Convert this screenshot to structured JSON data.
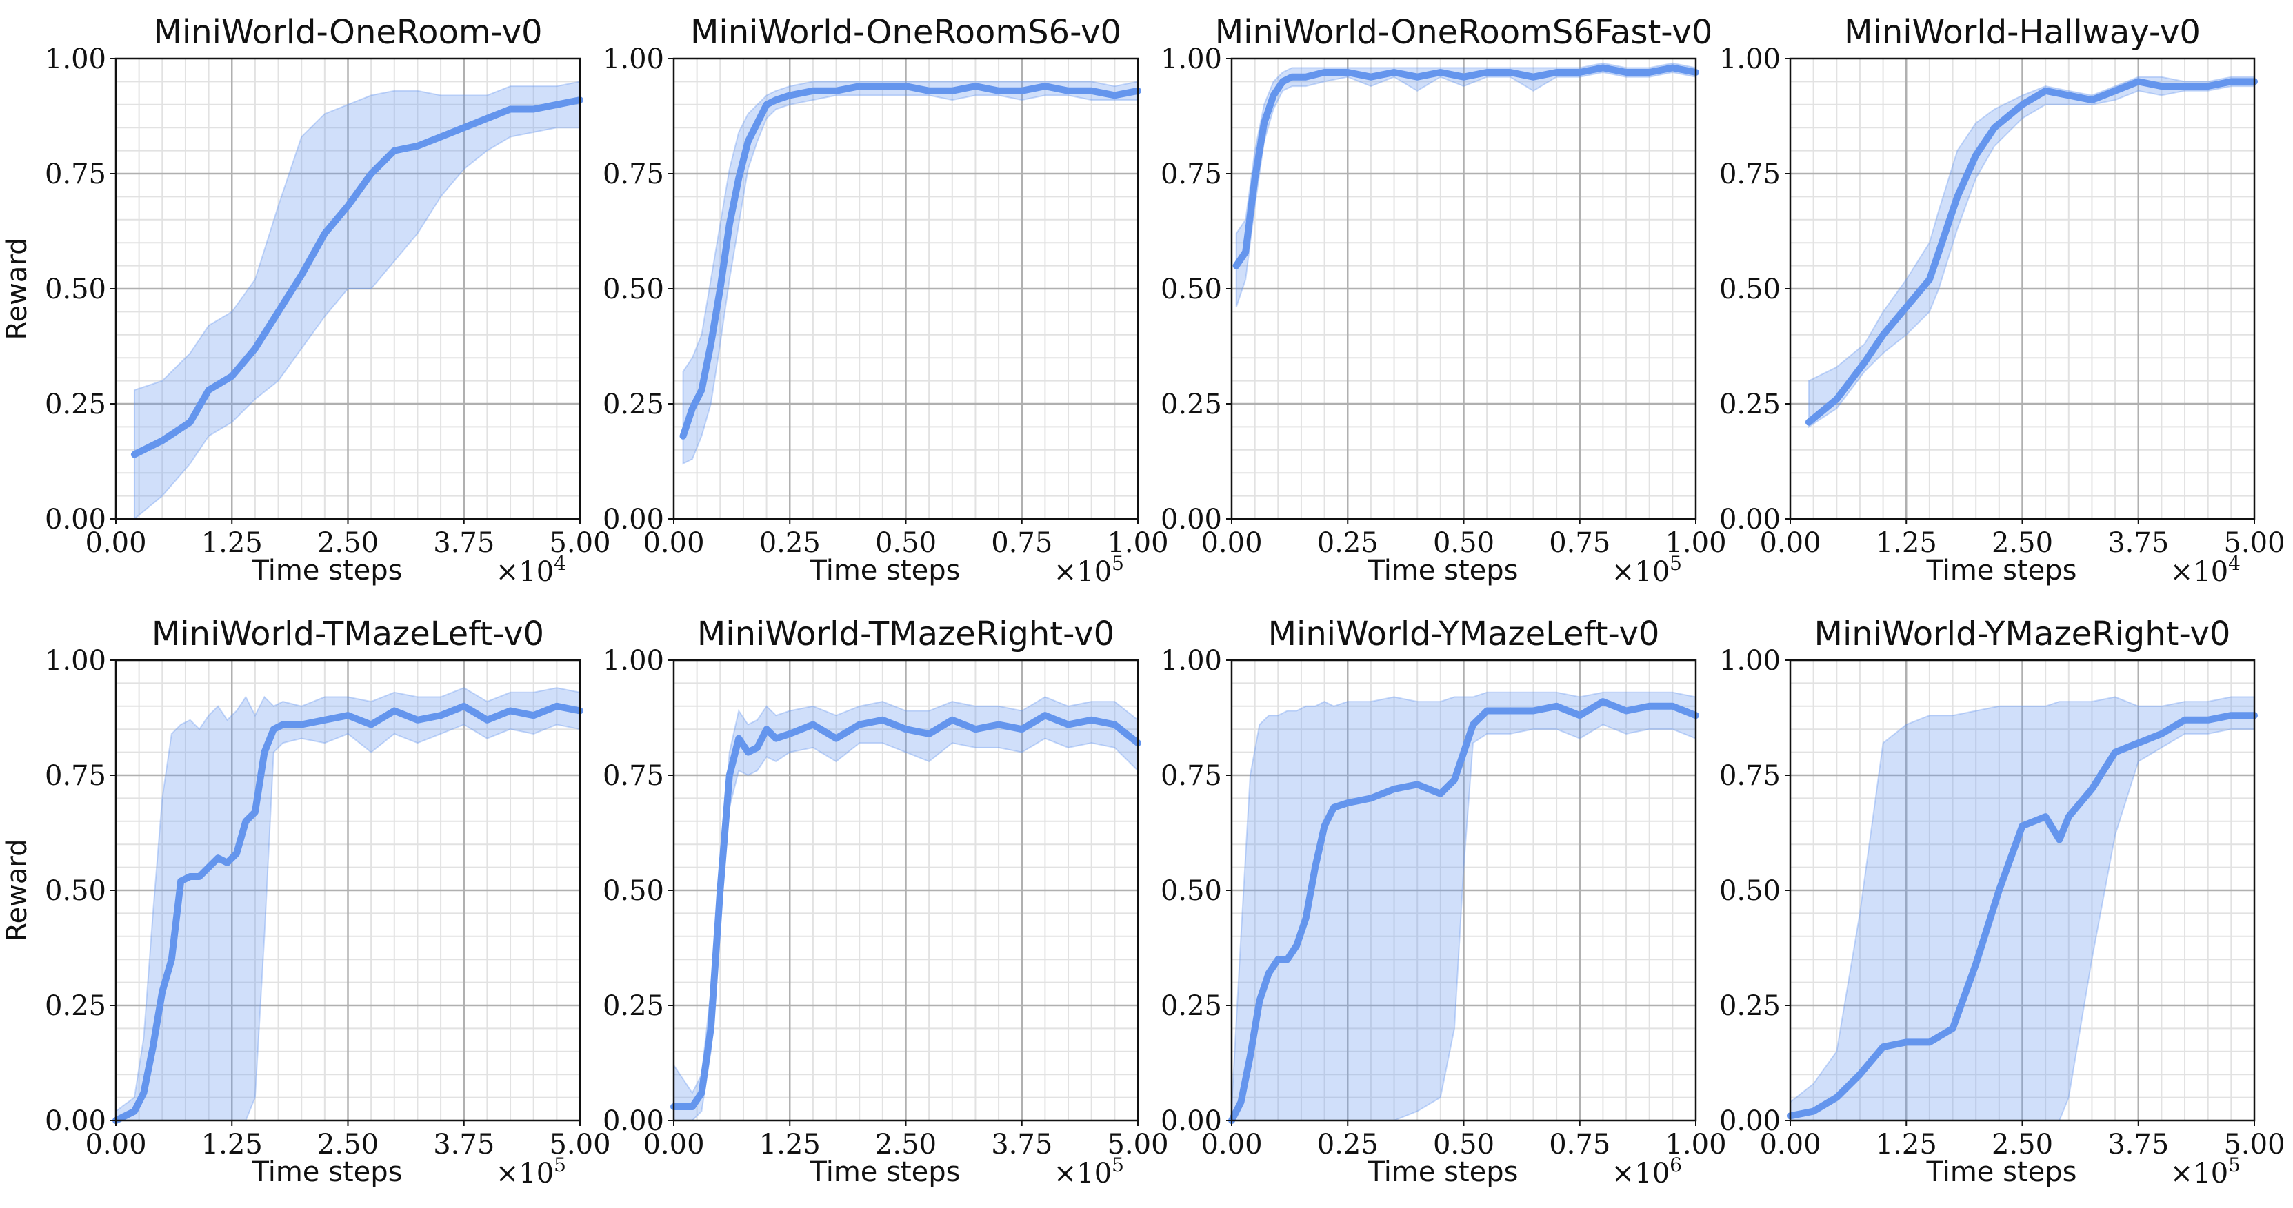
{
  "colors": {
    "line": "#6495ED",
    "band": "#6495ED",
    "major_grid": "#b0b0b0",
    "minor_grid": "#e2e2e2"
  },
  "chart_data": [
    {
      "type": "line",
      "title": "MiniWorld-OneRoom-v0",
      "xlabel": "Time steps",
      "ylabel": "Reward",
      "x_multiplier": "10^4",
      "x_exponent": "4",
      "xticks": [
        "0.00",
        "1.25",
        "2.50",
        "3.75",
        "5.00"
      ],
      "yticks": [
        "0.00",
        "0.25",
        "0.50",
        "0.75",
        "1.00"
      ],
      "xlim": [
        0,
        5
      ],
      "ylim": [
        0,
        1
      ],
      "grid": true,
      "series": [
        {
          "x": [
            0.2,
            0.5,
            0.8,
            1.0,
            1.25,
            1.5,
            1.75,
            2.0,
            2.25,
            2.5,
            2.75,
            3.0,
            3.25,
            3.5,
            3.75,
            4.0,
            4.25,
            4.5,
            4.75,
            5.0
          ],
          "mean": [
            0.14,
            0.17,
            0.21,
            0.28,
            0.31,
            0.37,
            0.45,
            0.53,
            0.62,
            0.68,
            0.75,
            0.8,
            0.81,
            0.83,
            0.85,
            0.87,
            0.89,
            0.89,
            0.9,
            0.91
          ],
          "lower": [
            0.0,
            0.05,
            0.12,
            0.18,
            0.21,
            0.26,
            0.3,
            0.37,
            0.44,
            0.5,
            0.5,
            0.56,
            0.62,
            0.7,
            0.76,
            0.8,
            0.83,
            0.84,
            0.85,
            0.85
          ],
          "upper": [
            0.28,
            0.3,
            0.36,
            0.42,
            0.45,
            0.52,
            0.68,
            0.83,
            0.88,
            0.9,
            0.92,
            0.93,
            0.93,
            0.92,
            0.92,
            0.92,
            0.94,
            0.94,
            0.94,
            0.95
          ]
        }
      ]
    },
    {
      "type": "line",
      "title": "MiniWorld-OneRoomS6-v0",
      "xlabel": "Time steps",
      "ylabel": "",
      "x_multiplier": "10^5",
      "x_exponent": "5",
      "xticks": [
        "0.00",
        "0.25",
        "0.50",
        "0.75",
        "1.00"
      ],
      "yticks": [
        "0.00",
        "0.25",
        "0.50",
        "0.75",
        "1.00"
      ],
      "xlim": [
        0,
        1
      ],
      "ylim": [
        0,
        1
      ],
      "grid": true,
      "series": [
        {
          "x": [
            0.02,
            0.04,
            0.06,
            0.08,
            0.1,
            0.12,
            0.14,
            0.16,
            0.18,
            0.2,
            0.22,
            0.25,
            0.3,
            0.35,
            0.4,
            0.45,
            0.5,
            0.55,
            0.6,
            0.65,
            0.7,
            0.75,
            0.8,
            0.85,
            0.9,
            0.95,
            1.0
          ],
          "mean": [
            0.18,
            0.24,
            0.28,
            0.38,
            0.5,
            0.64,
            0.74,
            0.82,
            0.86,
            0.9,
            0.91,
            0.92,
            0.93,
            0.93,
            0.94,
            0.94,
            0.94,
            0.93,
            0.93,
            0.94,
            0.93,
            0.93,
            0.94,
            0.93,
            0.93,
            0.92,
            0.93
          ],
          "lower": [
            0.12,
            0.13,
            0.18,
            0.25,
            0.38,
            0.52,
            0.64,
            0.76,
            0.82,
            0.87,
            0.89,
            0.9,
            0.91,
            0.92,
            0.92,
            0.92,
            0.92,
            0.92,
            0.91,
            0.92,
            0.92,
            0.91,
            0.92,
            0.92,
            0.91,
            0.91,
            0.91
          ],
          "upper": [
            0.32,
            0.35,
            0.4,
            0.52,
            0.64,
            0.76,
            0.84,
            0.88,
            0.9,
            0.92,
            0.93,
            0.94,
            0.95,
            0.95,
            0.95,
            0.95,
            0.95,
            0.95,
            0.95,
            0.95,
            0.95,
            0.95,
            0.95,
            0.95,
            0.95,
            0.94,
            0.95
          ]
        }
      ]
    },
    {
      "type": "line",
      "title": "MiniWorld-OneRoomS6Fast-v0",
      "xlabel": "Time steps",
      "ylabel": "",
      "x_multiplier": "10^5",
      "x_exponent": "5",
      "xticks": [
        "0.00",
        "0.25",
        "0.50",
        "0.75",
        "1.00"
      ],
      "yticks": [
        "0.00",
        "0.25",
        "0.50",
        "0.75",
        "1.00"
      ],
      "xlim": [
        0,
        1
      ],
      "ylim": [
        0,
        1
      ],
      "grid": true,
      "series": [
        {
          "x": [
            0.01,
            0.03,
            0.05,
            0.07,
            0.09,
            0.11,
            0.13,
            0.16,
            0.2,
            0.25,
            0.3,
            0.35,
            0.4,
            0.45,
            0.5,
            0.55,
            0.6,
            0.65,
            0.7,
            0.75,
            0.8,
            0.85,
            0.9,
            0.95,
            1.0
          ],
          "mean": [
            0.55,
            0.58,
            0.74,
            0.86,
            0.92,
            0.95,
            0.96,
            0.96,
            0.97,
            0.97,
            0.96,
            0.97,
            0.96,
            0.97,
            0.96,
            0.97,
            0.97,
            0.96,
            0.97,
            0.97,
            0.98,
            0.97,
            0.97,
            0.98,
            0.97
          ],
          "lower": [
            0.46,
            0.52,
            0.68,
            0.82,
            0.89,
            0.93,
            0.94,
            0.94,
            0.95,
            0.96,
            0.94,
            0.96,
            0.93,
            0.96,
            0.94,
            0.96,
            0.96,
            0.93,
            0.96,
            0.96,
            0.97,
            0.96,
            0.96,
            0.97,
            0.96
          ],
          "upper": [
            0.62,
            0.65,
            0.8,
            0.9,
            0.95,
            0.97,
            0.98,
            0.98,
            0.98,
            0.98,
            0.98,
            0.98,
            0.98,
            0.98,
            0.98,
            0.98,
            0.98,
            0.98,
            0.98,
            0.98,
            0.99,
            0.98,
            0.98,
            0.99,
            0.98
          ]
        }
      ]
    },
    {
      "type": "line",
      "title": "MiniWorld-Hallway-v0",
      "xlabel": "Time steps",
      "ylabel": "",
      "x_multiplier": "10^4",
      "x_exponent": "4",
      "xticks": [
        "0.00",
        "1.25",
        "2.50",
        "3.75",
        "5.00"
      ],
      "yticks": [
        "0.00",
        "0.25",
        "0.50",
        "0.75",
        "1.00"
      ],
      "xlim": [
        0,
        5
      ],
      "ylim": [
        0,
        1
      ],
      "grid": true,
      "series": [
        {
          "x": [
            0.2,
            0.5,
            0.8,
            1.0,
            1.25,
            1.5,
            1.6,
            1.8,
            2.0,
            2.2,
            2.5,
            2.75,
            3.0,
            3.25,
            3.5,
            3.75,
            4.0,
            4.25,
            4.5,
            4.75,
            5.0
          ],
          "mean": [
            0.21,
            0.26,
            0.34,
            0.4,
            0.46,
            0.52,
            0.58,
            0.7,
            0.79,
            0.85,
            0.9,
            0.93,
            0.92,
            0.91,
            0.93,
            0.95,
            0.94,
            0.94,
            0.94,
            0.95,
            0.95
          ],
          "lower": [
            0.2,
            0.24,
            0.32,
            0.36,
            0.4,
            0.45,
            0.5,
            0.63,
            0.74,
            0.81,
            0.87,
            0.9,
            0.9,
            0.9,
            0.91,
            0.93,
            0.92,
            0.93,
            0.93,
            0.94,
            0.94
          ],
          "upper": [
            0.3,
            0.33,
            0.38,
            0.45,
            0.52,
            0.6,
            0.67,
            0.8,
            0.86,
            0.89,
            0.92,
            0.94,
            0.93,
            0.92,
            0.94,
            0.96,
            0.96,
            0.95,
            0.95,
            0.96,
            0.96
          ]
        }
      ]
    },
    {
      "type": "line",
      "title": "MiniWorld-TMazeLeft-v0",
      "xlabel": "Time steps",
      "ylabel": "Reward",
      "x_multiplier": "10^5",
      "x_exponent": "5",
      "xticks": [
        "0.00",
        "1.25",
        "2.50",
        "3.75",
        "5.00"
      ],
      "yticks": [
        "0.00",
        "0.25",
        "0.50",
        "0.75",
        "1.00"
      ],
      "xlim": [
        0,
        5
      ],
      "ylim": [
        0,
        1
      ],
      "grid": true,
      "series": [
        {
          "x": [
            0.0,
            0.2,
            0.3,
            0.4,
            0.5,
            0.6,
            0.7,
            0.8,
            0.9,
            1.0,
            1.1,
            1.2,
            1.3,
            1.4,
            1.5,
            1.6,
            1.7,
            1.8,
            2.0,
            2.25,
            2.5,
            2.75,
            3.0,
            3.25,
            3.5,
            3.75,
            4.0,
            4.25,
            4.5,
            4.75,
            5.0
          ],
          "mean": [
            0.0,
            0.02,
            0.06,
            0.16,
            0.28,
            0.35,
            0.52,
            0.53,
            0.53,
            0.55,
            0.57,
            0.56,
            0.58,
            0.65,
            0.67,
            0.8,
            0.85,
            0.86,
            0.86,
            0.87,
            0.88,
            0.86,
            0.89,
            0.87,
            0.88,
            0.9,
            0.87,
            0.89,
            0.88,
            0.9,
            0.89
          ],
          "lower": [
            0.0,
            0.0,
            0.0,
            0.0,
            0.0,
            0.0,
            0.0,
            0.0,
            0.0,
            0.0,
            0.0,
            0.0,
            0.0,
            0.0,
            0.05,
            0.4,
            0.8,
            0.82,
            0.83,
            0.82,
            0.84,
            0.8,
            0.84,
            0.82,
            0.84,
            0.86,
            0.83,
            0.85,
            0.84,
            0.86,
            0.85
          ],
          "upper": [
            0.02,
            0.05,
            0.18,
            0.45,
            0.7,
            0.84,
            0.86,
            0.87,
            0.85,
            0.88,
            0.9,
            0.87,
            0.89,
            0.92,
            0.88,
            0.92,
            0.9,
            0.91,
            0.9,
            0.92,
            0.92,
            0.91,
            0.93,
            0.92,
            0.92,
            0.94,
            0.91,
            0.93,
            0.93,
            0.94,
            0.93
          ]
        }
      ]
    },
    {
      "type": "line",
      "title": "MiniWorld-TMazeRight-v0",
      "xlabel": "Time steps",
      "ylabel": "",
      "x_multiplier": "10^5",
      "x_exponent": "5",
      "xticks": [
        "0.00",
        "1.25",
        "2.50",
        "3.75",
        "5.00"
      ],
      "yticks": [
        "0.00",
        "0.25",
        "0.50",
        "0.75",
        "1.00"
      ],
      "xlim": [
        0,
        5
      ],
      "ylim": [
        0,
        1
      ],
      "grid": true,
      "series": [
        {
          "x": [
            0.0,
            0.2,
            0.3,
            0.4,
            0.5,
            0.6,
            0.7,
            0.8,
            0.9,
            1.0,
            1.1,
            1.25,
            1.5,
            1.75,
            2.0,
            2.25,
            2.5,
            2.75,
            3.0,
            3.25,
            3.5,
            3.75,
            4.0,
            4.25,
            4.5,
            4.75,
            5.0
          ],
          "mean": [
            0.03,
            0.03,
            0.06,
            0.2,
            0.5,
            0.75,
            0.83,
            0.8,
            0.81,
            0.85,
            0.83,
            0.84,
            0.86,
            0.83,
            0.86,
            0.87,
            0.85,
            0.84,
            0.87,
            0.85,
            0.86,
            0.85,
            0.88,
            0.86,
            0.87,
            0.86,
            0.82
          ],
          "lower": [
            0.0,
            0.0,
            0.02,
            0.15,
            0.44,
            0.68,
            0.76,
            0.75,
            0.76,
            0.79,
            0.78,
            0.8,
            0.81,
            0.78,
            0.82,
            0.82,
            0.8,
            0.78,
            0.82,
            0.81,
            0.81,
            0.8,
            0.83,
            0.81,
            0.82,
            0.81,
            0.76
          ],
          "upper": [
            0.12,
            0.06,
            0.1,
            0.28,
            0.56,
            0.8,
            0.89,
            0.86,
            0.87,
            0.9,
            0.88,
            0.89,
            0.9,
            0.88,
            0.9,
            0.91,
            0.89,
            0.89,
            0.91,
            0.9,
            0.9,
            0.89,
            0.92,
            0.9,
            0.91,
            0.91,
            0.87
          ]
        }
      ]
    },
    {
      "type": "line",
      "title": "MiniWorld-YMazeLeft-v0",
      "xlabel": "Time steps",
      "ylabel": "",
      "x_multiplier": "10^6",
      "x_exponent": "6",
      "xticks": [
        "0.00",
        "0.25",
        "0.50",
        "0.75",
        "1.00"
      ],
      "yticks": [
        "0.00",
        "0.25",
        "0.50",
        "0.75",
        "1.00"
      ],
      "xlim": [
        0,
        1
      ],
      "ylim": [
        0,
        1
      ],
      "grid": true,
      "series": [
        {
          "x": [
            0.0,
            0.02,
            0.04,
            0.06,
            0.08,
            0.1,
            0.12,
            0.14,
            0.16,
            0.18,
            0.2,
            0.22,
            0.25,
            0.3,
            0.35,
            0.4,
            0.45,
            0.48,
            0.5,
            0.52,
            0.55,
            0.6,
            0.65,
            0.7,
            0.75,
            0.8,
            0.85,
            0.9,
            0.95,
            1.0
          ],
          "mean": [
            0.0,
            0.04,
            0.14,
            0.26,
            0.32,
            0.35,
            0.35,
            0.38,
            0.44,
            0.55,
            0.64,
            0.68,
            0.69,
            0.7,
            0.72,
            0.73,
            0.71,
            0.74,
            0.8,
            0.86,
            0.89,
            0.89,
            0.89,
            0.9,
            0.88,
            0.91,
            0.89,
            0.9,
            0.9,
            0.88
          ],
          "lower": [
            0.0,
            0.0,
            0.0,
            0.0,
            0.0,
            0.0,
            0.0,
            0.0,
            0.0,
            0.0,
            0.0,
            0.0,
            0.0,
            0.0,
            0.0,
            0.02,
            0.05,
            0.2,
            0.55,
            0.82,
            0.84,
            0.84,
            0.85,
            0.85,
            0.83,
            0.86,
            0.84,
            0.85,
            0.85,
            0.83
          ],
          "upper": [
            0.03,
            0.4,
            0.75,
            0.86,
            0.88,
            0.88,
            0.89,
            0.89,
            0.9,
            0.9,
            0.91,
            0.9,
            0.91,
            0.91,
            0.92,
            0.91,
            0.91,
            0.92,
            0.92,
            0.92,
            0.93,
            0.93,
            0.93,
            0.93,
            0.92,
            0.93,
            0.93,
            0.93,
            0.93,
            0.92
          ]
        }
      ]
    },
    {
      "type": "line",
      "title": "MiniWorld-YMazeRight-v0",
      "xlabel": "Time steps",
      "ylabel": "",
      "x_multiplier": "10^5",
      "x_exponent": "5",
      "xticks": [
        "0.00",
        "1.25",
        "2.50",
        "3.75",
        "5.00"
      ],
      "yticks": [
        "0.00",
        "0.25",
        "0.50",
        "0.75",
        "1.00"
      ],
      "xlim": [
        0,
        5
      ],
      "ylim": [
        0,
        1
      ],
      "grid": true,
      "series": [
        {
          "x": [
            0.0,
            0.25,
            0.5,
            0.75,
            1.0,
            1.25,
            1.5,
            1.75,
            2.0,
            2.25,
            2.5,
            2.75,
            2.9,
            3.0,
            3.25,
            3.5,
            3.75,
            4.0,
            4.25,
            4.5,
            4.75,
            5.0
          ],
          "mean": [
            0.01,
            0.02,
            0.05,
            0.1,
            0.16,
            0.17,
            0.17,
            0.2,
            0.34,
            0.5,
            0.64,
            0.66,
            0.61,
            0.66,
            0.72,
            0.8,
            0.82,
            0.84,
            0.87,
            0.87,
            0.88,
            0.88
          ],
          "lower": [
            0.0,
            0.0,
            0.0,
            0.0,
            0.0,
            0.0,
            0.0,
            0.0,
            0.0,
            0.0,
            0.0,
            0.0,
            0.0,
            0.05,
            0.35,
            0.62,
            0.78,
            0.81,
            0.84,
            0.84,
            0.85,
            0.85
          ],
          "upper": [
            0.04,
            0.08,
            0.15,
            0.45,
            0.82,
            0.86,
            0.88,
            0.88,
            0.89,
            0.9,
            0.9,
            0.9,
            0.91,
            0.91,
            0.91,
            0.92,
            0.9,
            0.9,
            0.91,
            0.91,
            0.92,
            0.92
          ]
        }
      ]
    }
  ]
}
